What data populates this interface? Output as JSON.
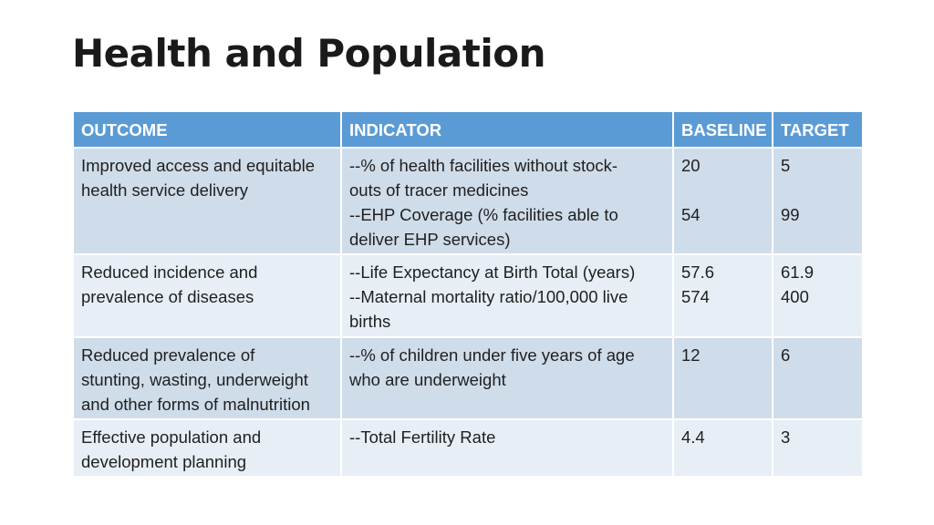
{
  "title": "Health and Population",
  "table": {
    "headers": [
      "OUTCOME",
      "INDICATOR",
      "BASELINE",
      "TARGET"
    ],
    "rows": [
      {
        "outcome": [
          "Improved access and equitable",
          "health service delivery"
        ],
        "indicator": [
          "--% of health facilities without stock-",
          "outs of tracer medicines",
          "--EHP Coverage (% facilities able to",
          "deliver EHP services)"
        ],
        "baseline": [
          "20",
          "",
          "54"
        ],
        "target": [
          "5",
          "",
          "99"
        ]
      },
      {
        "outcome": [
          "Reduced incidence and",
          "prevalence of diseases"
        ],
        "indicator": [
          "--Life Expectancy at Birth  Total  (years)",
          "--Maternal mortality ratio/100,000 live",
          "births"
        ],
        "baseline": [
          "57.6",
          "574"
        ],
        "target": [
          "61.9",
          "400"
        ]
      },
      {
        "outcome": [
          "Reduced prevalence of",
          "stunting, wasting,  underweight",
          "and other forms of malnutrition"
        ],
        "indicator": [
          "--% of children under five years of age",
          "who are underweight"
        ],
        "baseline": [
          "12"
        ],
        "target": [
          "6"
        ]
      },
      {
        "outcome": [
          "Effective population and",
          "development planning"
        ],
        "indicator": [
          "--Total Fertility Rate"
        ],
        "baseline": [
          "4.4"
        ],
        "target": [
          "3"
        ]
      }
    ]
  }
}
